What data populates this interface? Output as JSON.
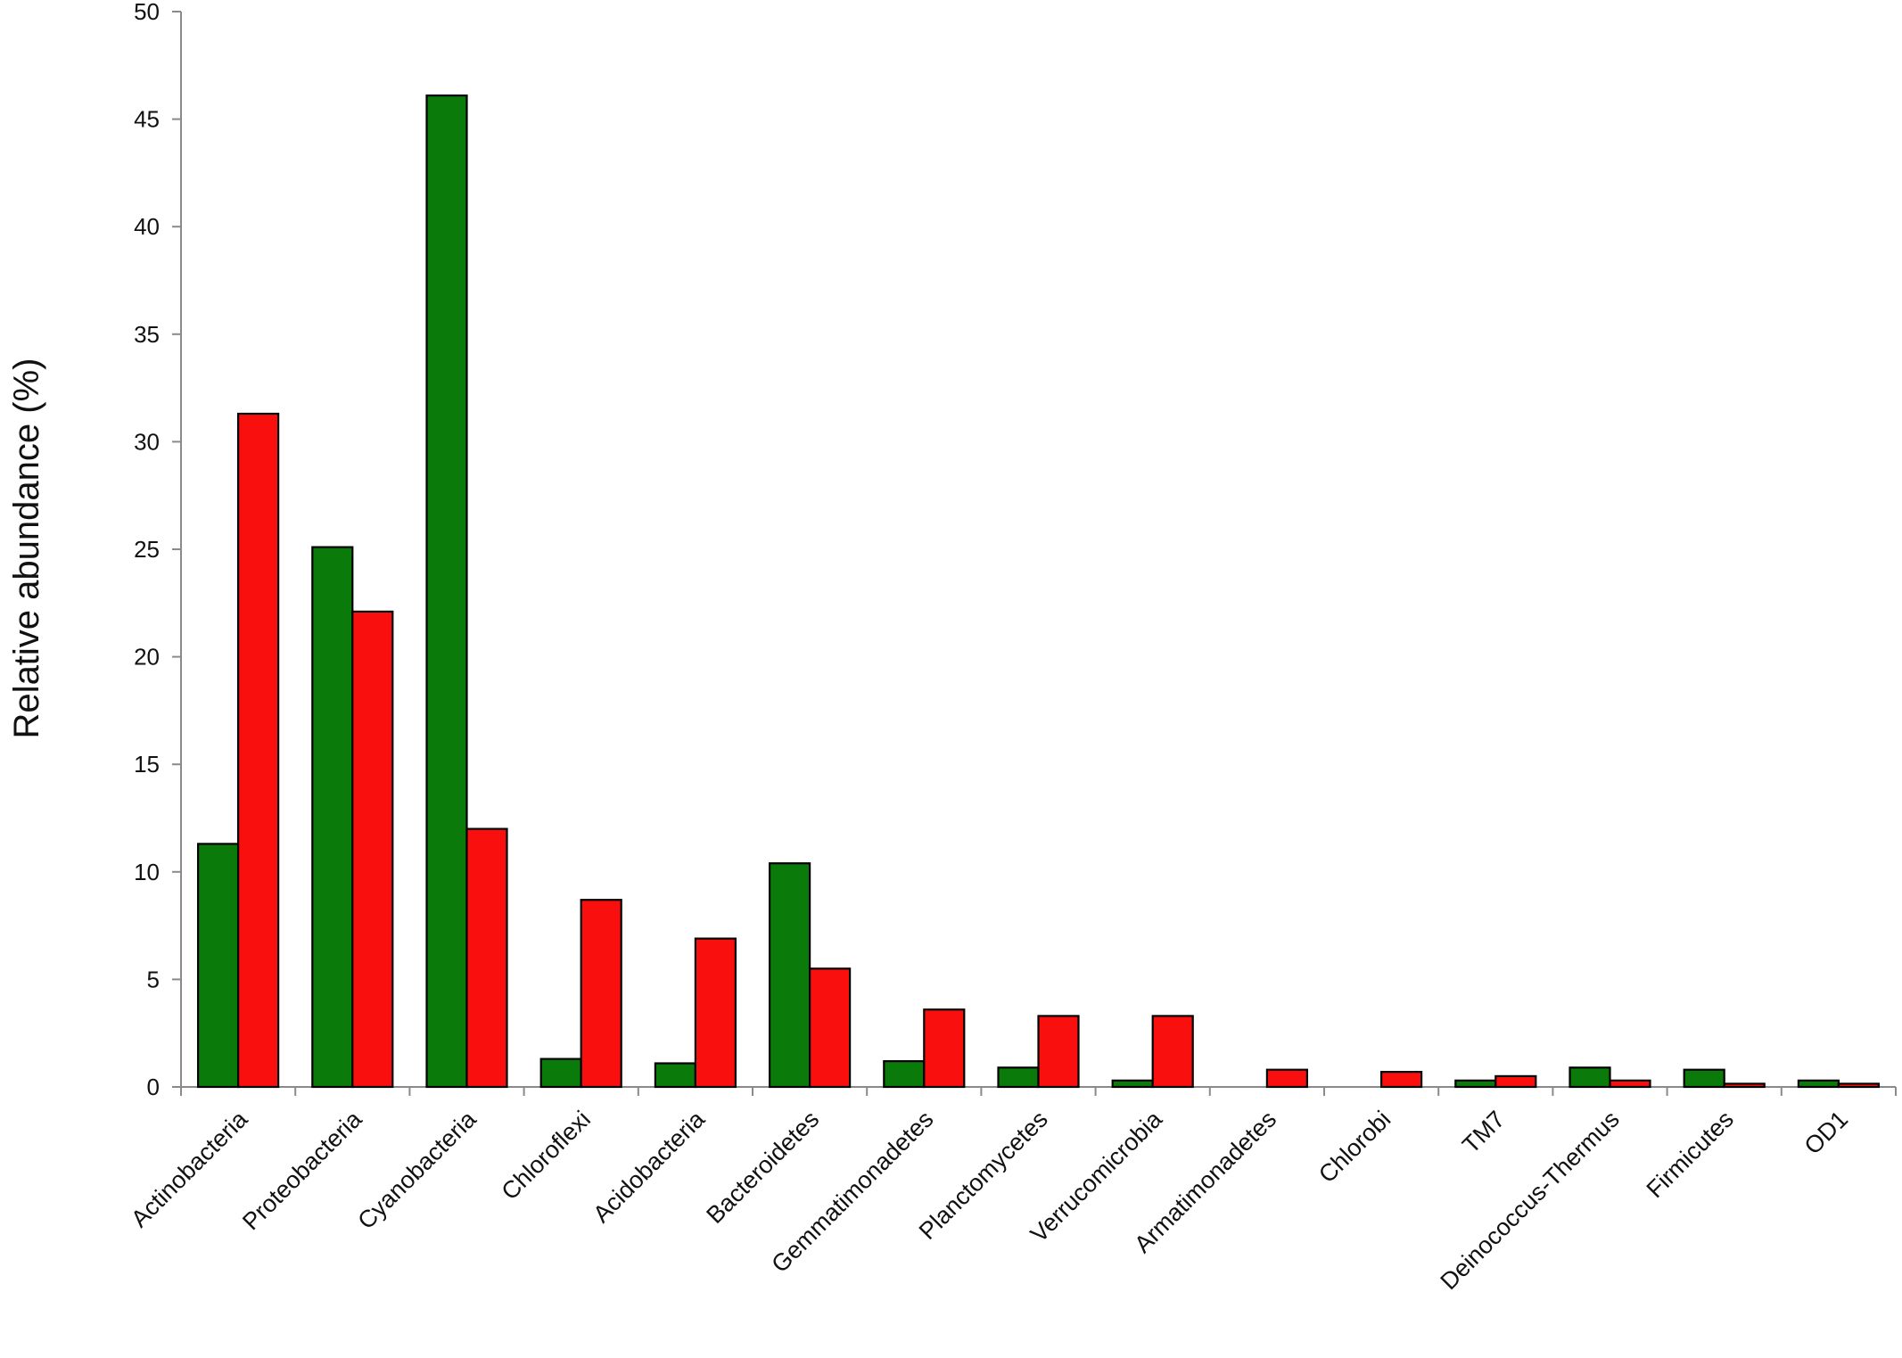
{
  "chart_data": {
    "type": "bar",
    "ylabel": "Relative abundance (%)",
    "xlabel": "",
    "ylim": [
      0,
      50
    ],
    "yticks": [
      0,
      5,
      10,
      15,
      20,
      25,
      30,
      35,
      40,
      45,
      50
    ],
    "grid": false,
    "categories": [
      "Actinobacteria",
      "Proteobacteria",
      "Cyanobacteria",
      "Chloroflexi",
      "Acidobacteria",
      "Bacteroidetes",
      "Gemmatimonadetes",
      "Planctomycetes",
      "Verrucomicrobia",
      "Armatimonadetes",
      "Chlorobi",
      "TM7",
      "Deinococcus-Thermus",
      "Firmicutes",
      "OD1"
    ],
    "series": [
      {
        "color": "#0a7a0a",
        "values": [
          11.3,
          25.1,
          46.1,
          1.3,
          1.1,
          10.4,
          1.2,
          0.9,
          0.3,
          0.0,
          0.0,
          0.3,
          0.9,
          0.8,
          0.3
        ]
      },
      {
        "color": "#fa0f0f",
        "values": [
          31.3,
          22.1,
          12.0,
          8.7,
          6.9,
          5.5,
          3.6,
          3.3,
          3.3,
          0.8,
          0.7,
          0.5,
          0.3,
          0.15,
          0.15
        ]
      }
    ]
  }
}
